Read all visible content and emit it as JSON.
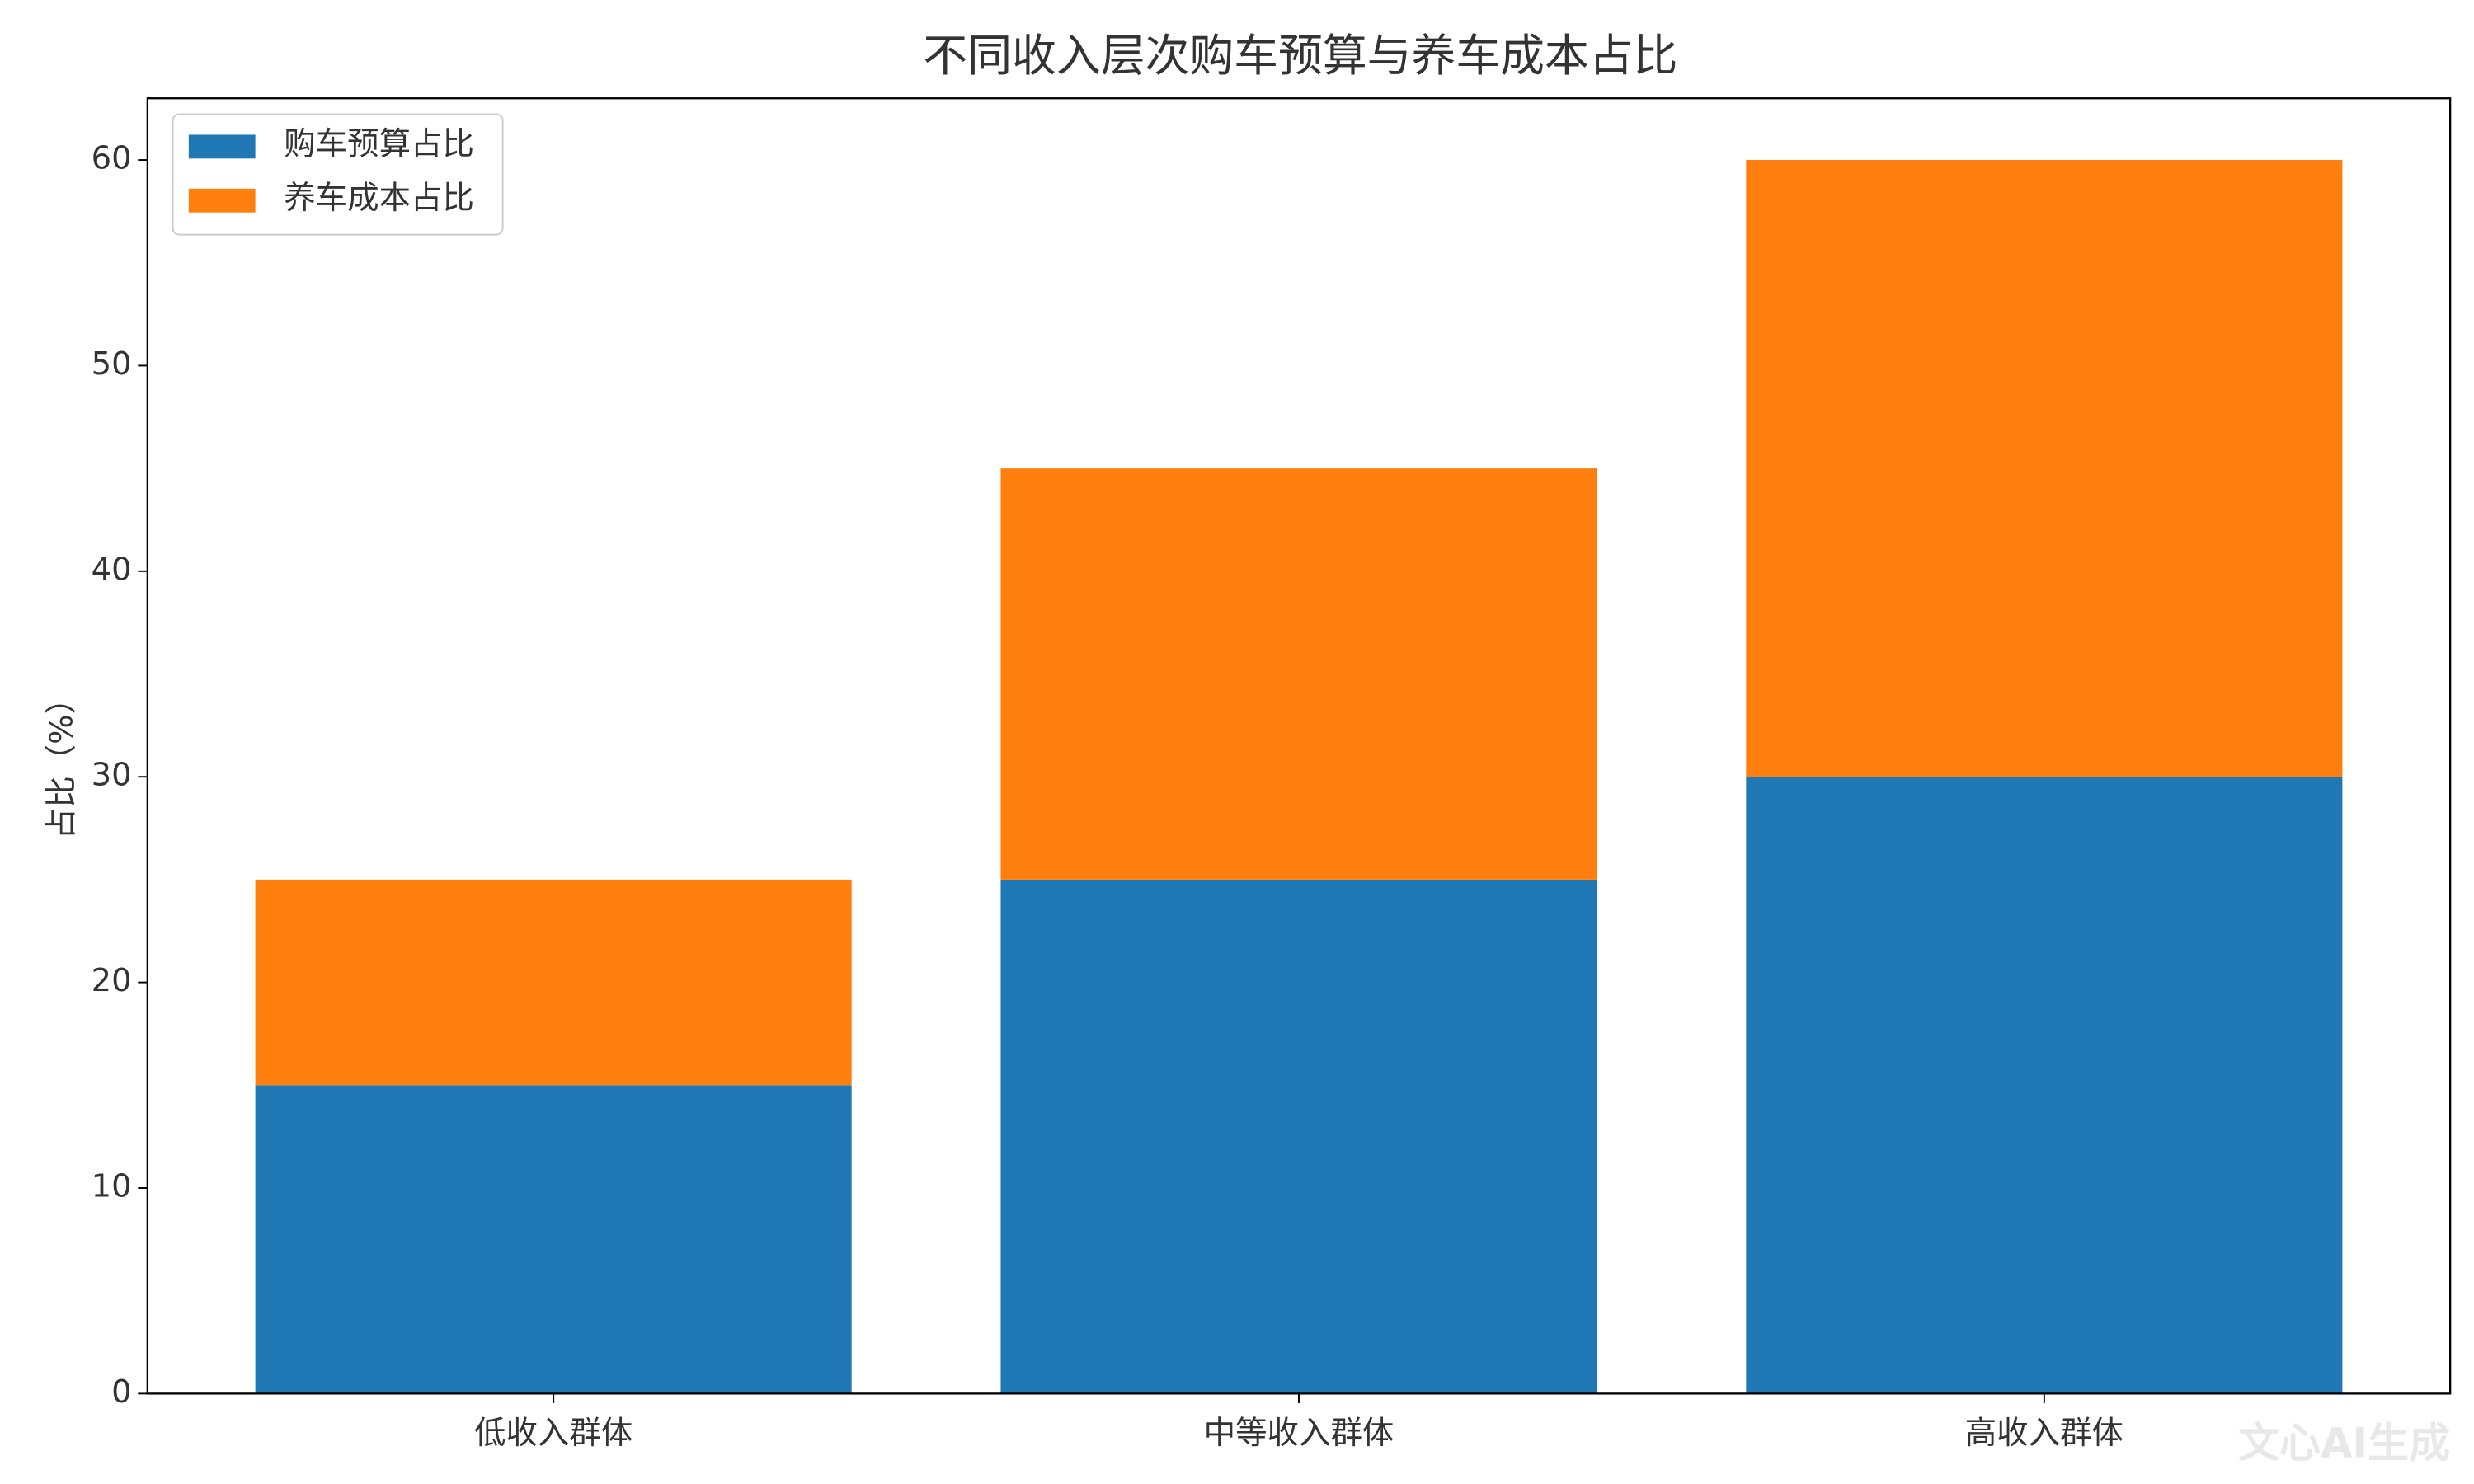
{
  "chart_data": {
    "type": "stacked_bar",
    "title": "不同收入层次购车预算与养车成本占比",
    "y_label": "占比（%）",
    "categories": [
      "低收入群体",
      "中等收入群体",
      "高收入群体"
    ],
    "series": [
      {
        "name": "购车预算占比",
        "color": "#1f77b4",
        "values": [
          15,
          25,
          30
        ]
      },
      {
        "name": "养车成本占比",
        "color": "#ff7f0e",
        "values": [
          10,
          20,
          30
        ]
      }
    ],
    "ylim": [
      0,
      63
    ],
    "yticks": [
      0,
      10,
      20,
      30,
      40,
      50,
      60
    ],
    "legend": "upper-left",
    "grid": false,
    "watermark": "文心AI生成"
  }
}
